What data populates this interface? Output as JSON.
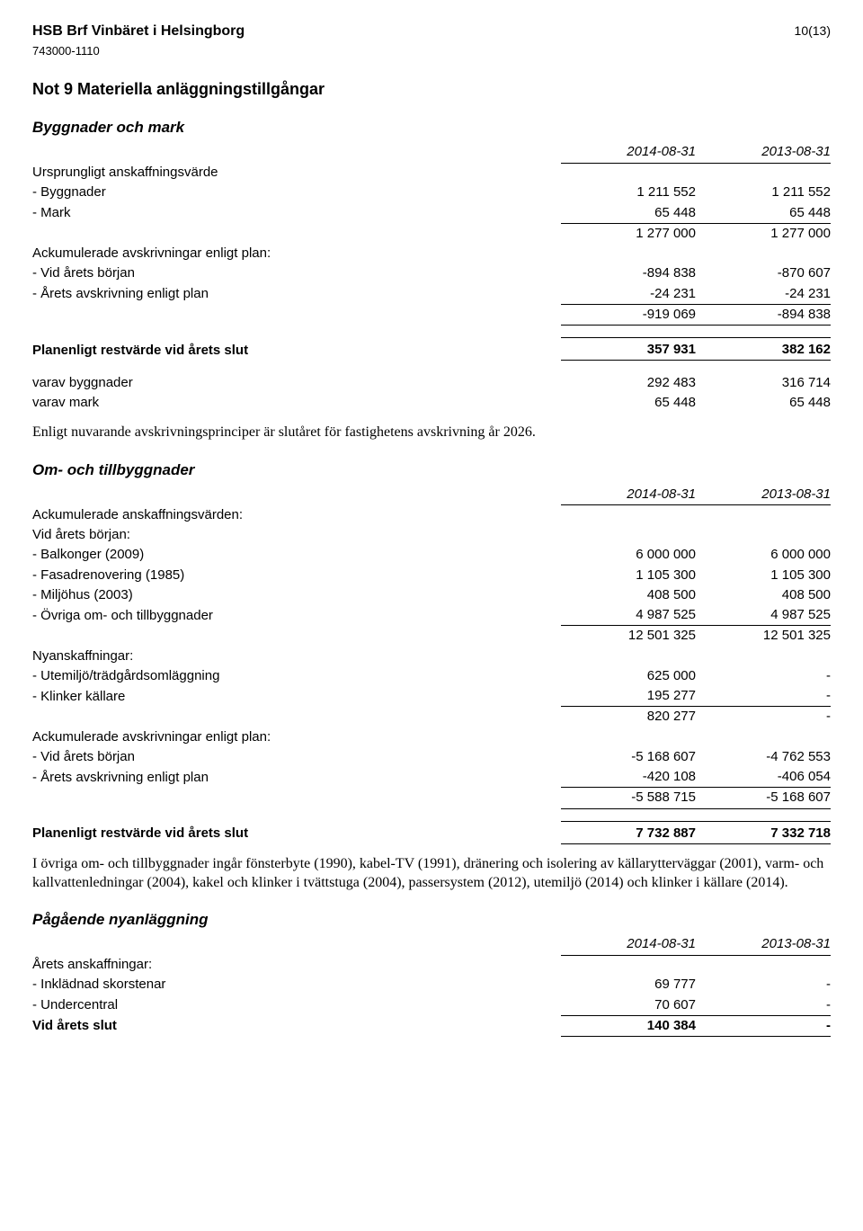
{
  "header": {
    "org_name": "HSB Brf Vinbäret i Helsingborg",
    "org_id": "743000-1110",
    "page_num": "10(13)"
  },
  "section_title": "Not 9  Materiella anläggningstillgångar",
  "byggnader": {
    "title": "Byggnader och mark",
    "col_a": "2014-08-31",
    "col_b": "2013-08-31",
    "r1_label": "Ursprungligt anskaffningsvärde",
    "r2_label": "- Byggnader",
    "r2_a": "1 211 552",
    "r2_b": "1 211 552",
    "r3_label": "- Mark",
    "r3_a": "65 448",
    "r3_b": "65 448",
    "r4_a": "1 277 000",
    "r4_b": "1 277 000",
    "r5_label": "Ackumulerade avskrivningar enligt plan:",
    "r6_label": "- Vid årets början",
    "r6_a": "-894 838",
    "r6_b": "-870 607",
    "r7_label": "- Årets avskrivning enligt plan",
    "r7_a": "-24 231",
    "r7_b": "-24 231",
    "r8_a": "-919 069",
    "r8_b": "-894 838",
    "r9_label": "Planenligt restvärde vid årets slut",
    "r9_a": "357 931",
    "r9_b": "382 162",
    "r10_label": "varav byggnader",
    "r10_a": "292 483",
    "r10_b": "316 714",
    "r11_label": "varav mark",
    "r11_a": "65 448",
    "r11_b": "65 448",
    "note": "Enligt nuvarande avskrivningsprinciper är slutåret för fastighetens avskrivning år 2026."
  },
  "omtill": {
    "title": "Om- och tillbyggnader",
    "col_a": "2014-08-31",
    "col_b": "2013-08-31",
    "r1_label": "Ackumulerade anskaffningsvärden:",
    "r2_label": "Vid årets början:",
    "r3_label": "- Balkonger (2009)",
    "r3_a": "6 000 000",
    "r3_b": "6 000 000",
    "r4_label": "- Fasadrenovering (1985)",
    "r4_a": "1 105 300",
    "r4_b": "1 105 300",
    "r5_label": "- Miljöhus (2003)",
    "r5_a": "408 500",
    "r5_b": "408 500",
    "r6_label": "- Övriga om- och tillbyggnader",
    "r6_a": "4 987 525",
    "r6_b": "4 987 525",
    "r7_a": "12 501 325",
    "r7_b": "12 501 325",
    "r8_label": "Nyanskaffningar:",
    "r9_label": "- Utemiljö/trädgårdsomläggning",
    "r9_a": "625 000",
    "r9_b": "-",
    "r10_label": "- Klinker källare",
    "r10_a": "195 277",
    "r10_b": "-",
    "r11_a": "820 277",
    "r11_b": "-",
    "r12_label": "Ackumulerade avskrivningar enligt plan:",
    "r13_label": "- Vid årets början",
    "r13_a": "-5 168 607",
    "r13_b": "-4 762 553",
    "r14_label": "- Årets avskrivning enligt plan",
    "r14_a": "-420 108",
    "r14_b": "-406 054",
    "r15_a": "-5 588 715",
    "r15_b": "-5 168 607",
    "r16_label": "Planenligt restvärde vid årets slut",
    "r16_a": "7 732 887",
    "r16_b": "7 332 718",
    "note": "I övriga om- och tillbyggnader ingår fönsterbyte (1990), kabel-TV (1991), dränering och isolering av källarytterväggar (2001), varm- och kallvattenledningar (2004), kakel och klinker i tvättstuga (2004), passersystem (2012), utemiljö (2014) och klinker i källare (2014)."
  },
  "pagaende": {
    "title": "Pågående nyanläggning",
    "col_a": "2014-08-31",
    "col_b": "2013-08-31",
    "r1_label": "Årets anskaffningar:",
    "r2_label": "- Inklädnad skorstenar",
    "r2_a": "69 777",
    "r2_b": "-",
    "r3_label": "- Undercentral",
    "r3_a": "70 607",
    "r3_b": "-",
    "r4_label": "Vid årets slut",
    "r4_a": "140 384",
    "r4_b": "-"
  }
}
